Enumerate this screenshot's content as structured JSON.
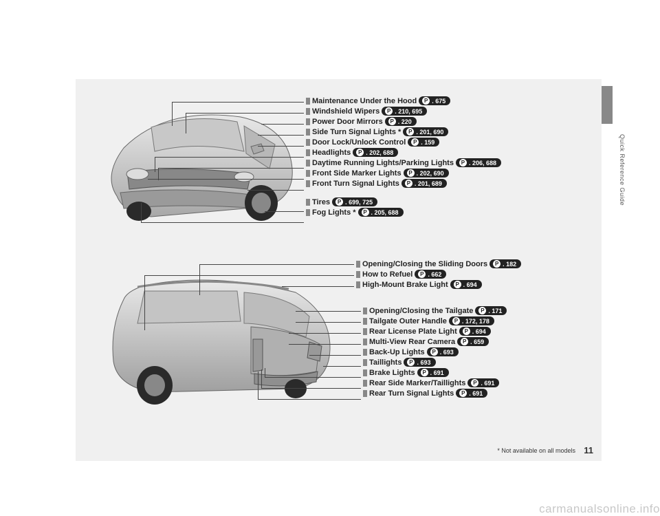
{
  "side_label": "Quick Reference Guide",
  "page_number": "11",
  "footnote": "* Not available on all models",
  "watermark": "carmanualsonline.info",
  "top_callouts": [
    {
      "label": "Maintenance Under the Hood",
      "pages": "675",
      "asterisk": false
    },
    {
      "label": "Windshield Wipers",
      "pages": "210, 695",
      "asterisk": false
    },
    {
      "label": "Power Door Mirrors",
      "pages": "220",
      "asterisk": false
    },
    {
      "label": "Side Turn Signal Lights",
      "pages": "201, 690",
      "asterisk": true
    },
    {
      "label": "Door Lock/Unlock Control",
      "pages": "159",
      "asterisk": false
    },
    {
      "label": "Headlights",
      "pages": "202, 688",
      "asterisk": false
    },
    {
      "label": "Daytime Running Lights/Parking Lights",
      "pages": "206, 688",
      "asterisk": false
    },
    {
      "label": "Front Side Marker Lights",
      "pages": "202, 690",
      "asterisk": false
    },
    {
      "label": "Front Turn Signal Lights",
      "pages": "201, 689",
      "asterisk": false
    },
    {
      "label": "Tires",
      "pages": "699, 725",
      "asterisk": false
    },
    {
      "label": "Fog Lights",
      "pages": "205, 688",
      "asterisk": true
    }
  ],
  "bottom_group1": [
    {
      "label": "Opening/Closing the Sliding Doors",
      "pages": "182",
      "asterisk": false
    },
    {
      "label": "How to Refuel",
      "pages": "662",
      "asterisk": false
    },
    {
      "label": "High-Mount Brake Light",
      "pages": "694",
      "asterisk": false
    }
  ],
  "bottom_group2": [
    {
      "label": "Opening/Closing the Tailgate",
      "pages": "171",
      "asterisk": false
    },
    {
      "label": "Tailgate Outer Handle",
      "pages": "172, 178",
      "asterisk": false
    },
    {
      "label": "Rear License Plate Light",
      "pages": "694",
      "asterisk": false
    },
    {
      "label": "Multi-View Rear Camera",
      "pages": "659",
      "asterisk": false
    },
    {
      "label": "Back-Up Lights",
      "pages": "693",
      "asterisk": false
    },
    {
      "label": "Taillights",
      "pages": "693",
      "asterisk": false
    },
    {
      "label": "Brake Lights",
      "pages": "691",
      "asterisk": false
    },
    {
      "label": "Rear Side Marker/Taillights",
      "pages": "691",
      "asterisk": false
    },
    {
      "label": "Rear Turn Signal Lights",
      "pages": "691",
      "asterisk": false
    }
  ],
  "top_gaps": [
    0,
    0,
    0,
    0,
    0,
    0,
    0,
    0,
    0,
    14,
    0
  ],
  "g1_gaps": [
    0,
    0,
    0
  ],
  "g2_gaps": [
    0,
    0,
    0,
    0,
    0,
    0,
    0,
    0,
    0
  ]
}
